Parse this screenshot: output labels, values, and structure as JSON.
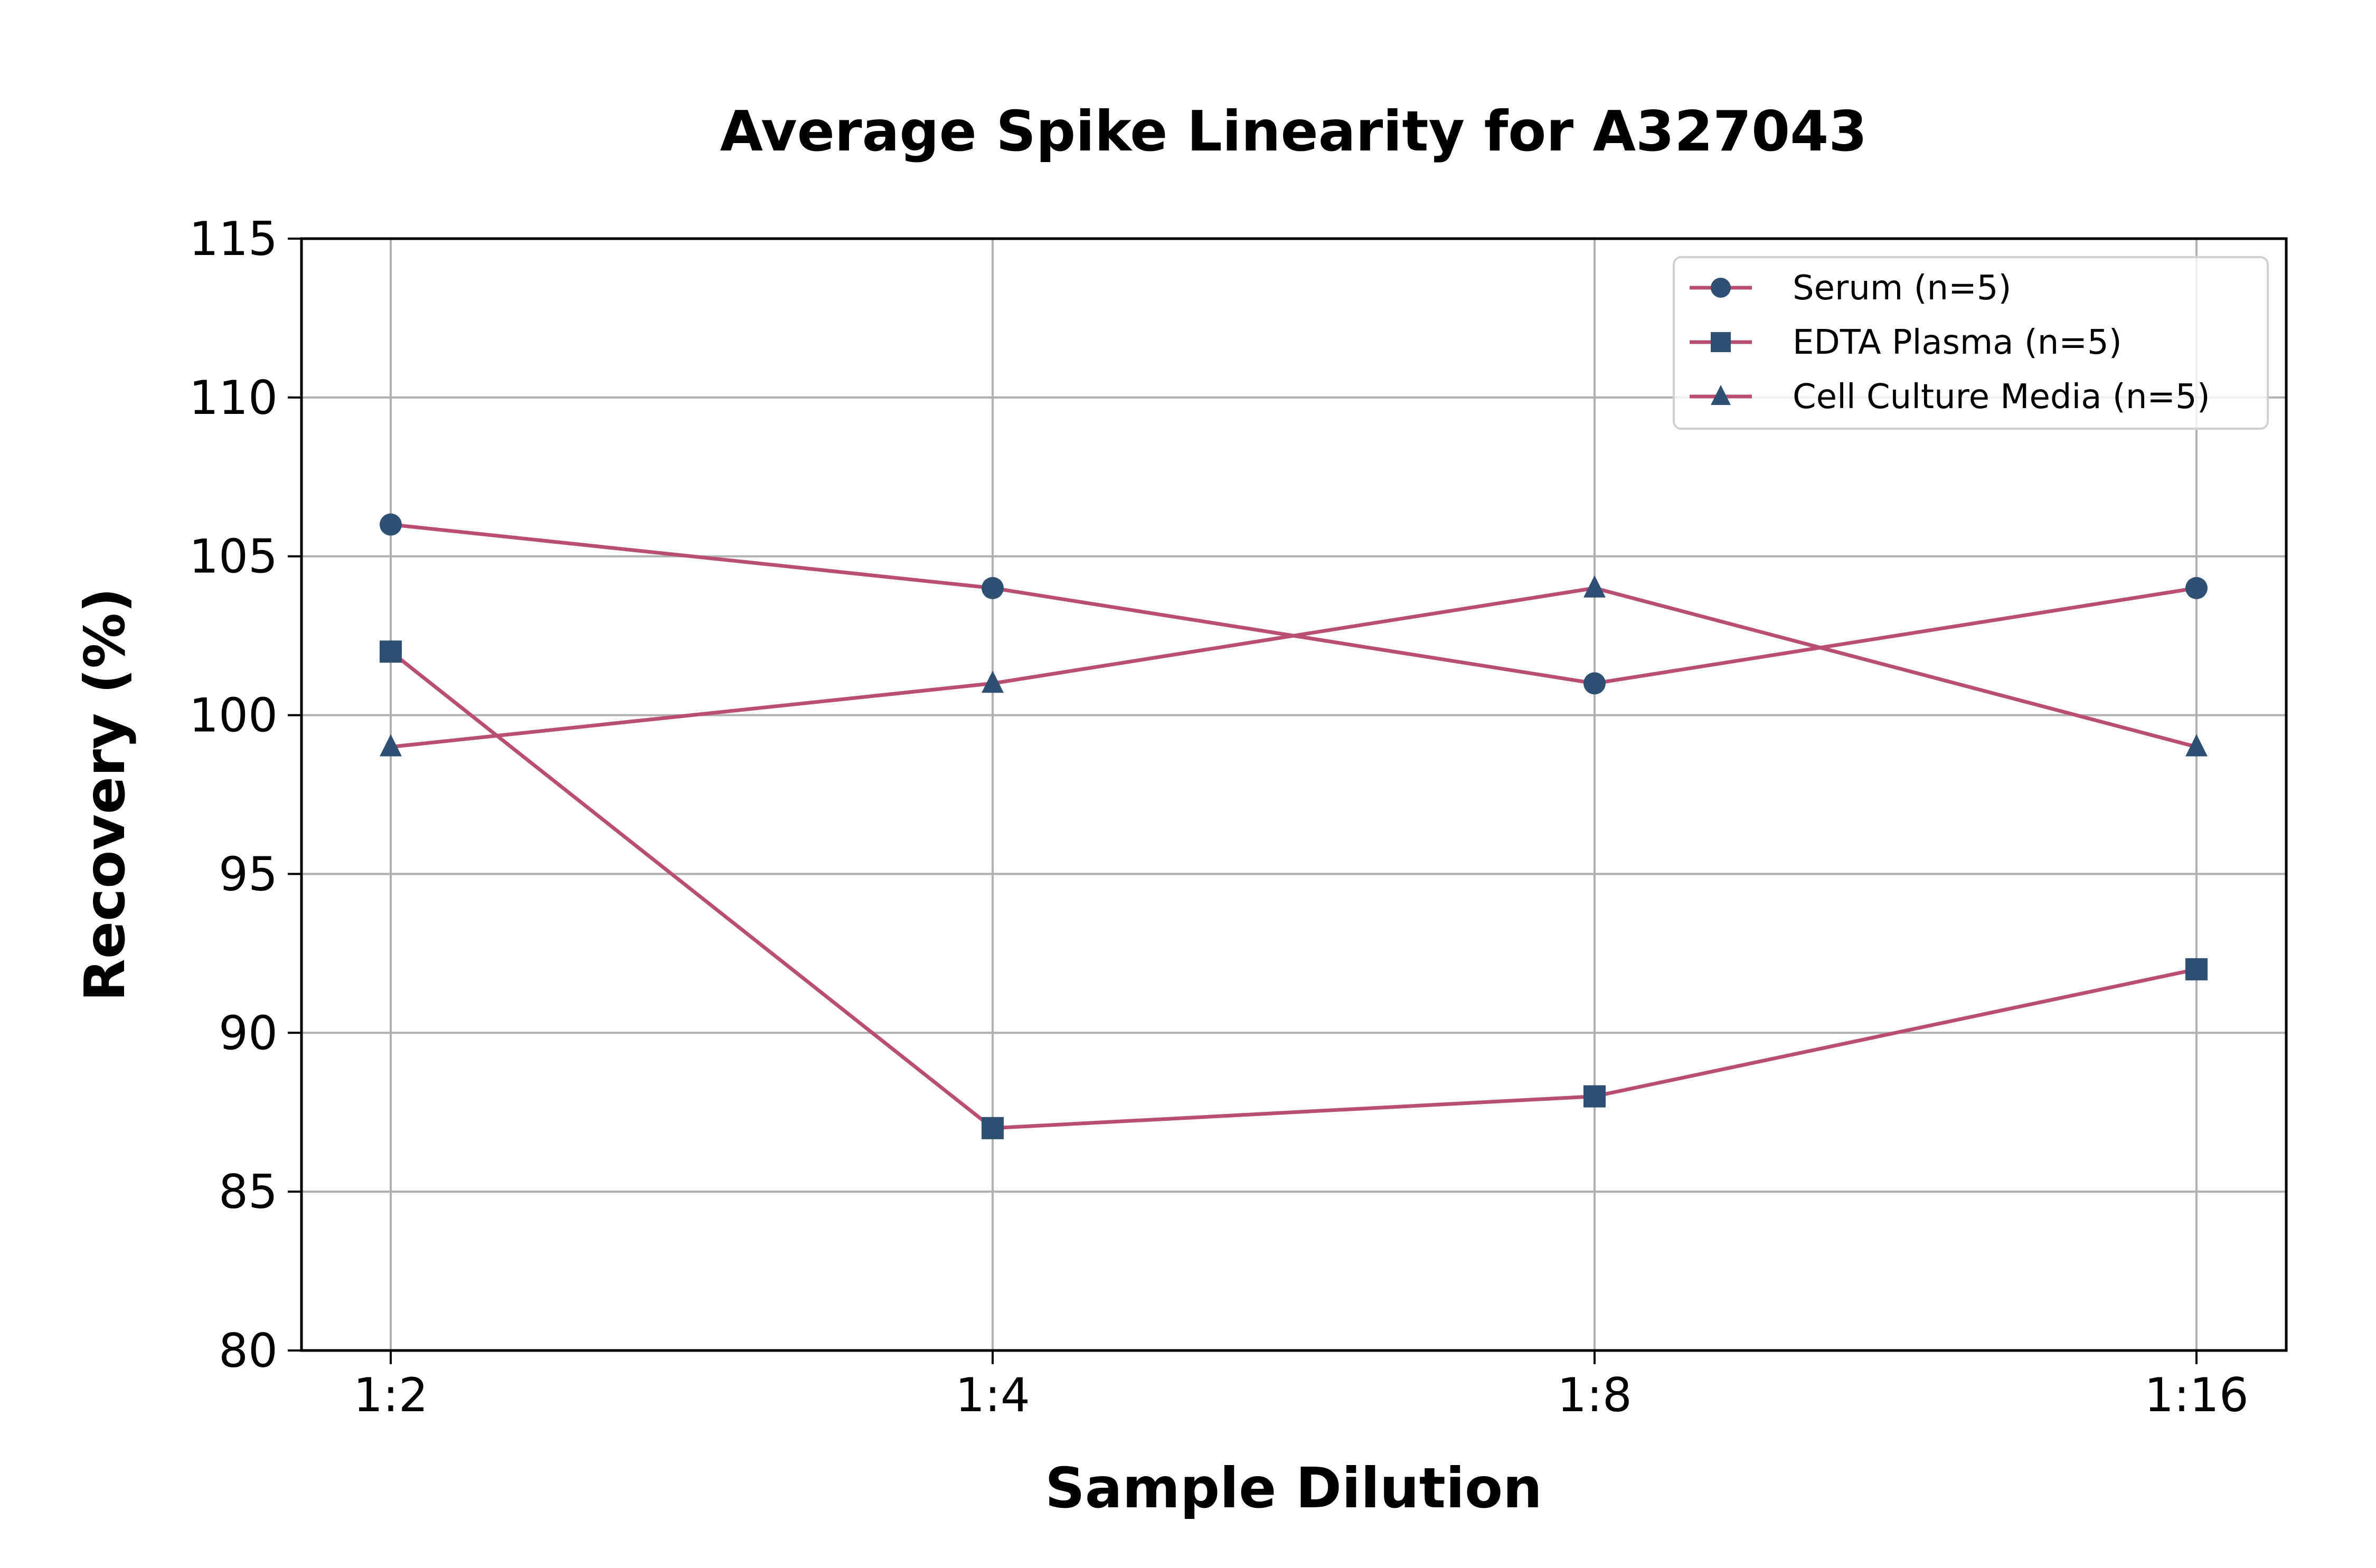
{
  "chart_data": {
    "type": "line",
    "title": "Average Spike Linearity for A327043",
    "xlabel": "Sample Dilution",
    "ylabel": "Recovery (%)",
    "categories": [
      "1:2",
      "1:4",
      "1:8",
      "1:16"
    ],
    "ylim": [
      80,
      115
    ],
    "yticks": [
      80,
      85,
      90,
      95,
      100,
      105,
      110,
      115
    ],
    "grid": true,
    "legend_position": "top-right",
    "line_color": "#b94e74",
    "marker_color": "#2e5073",
    "series": [
      {
        "name": "Serum (n=5)",
        "marker": "circle",
        "values": [
          106,
          104,
          101,
          104
        ]
      },
      {
        "name": "EDTA Plasma (n=5)",
        "marker": "square",
        "values": [
          102,
          87,
          88,
          92
        ]
      },
      {
        "name": "Cell Culture Media (n=5)",
        "marker": "triangle",
        "values": [
          99,
          101,
          104,
          99
        ]
      }
    ]
  }
}
